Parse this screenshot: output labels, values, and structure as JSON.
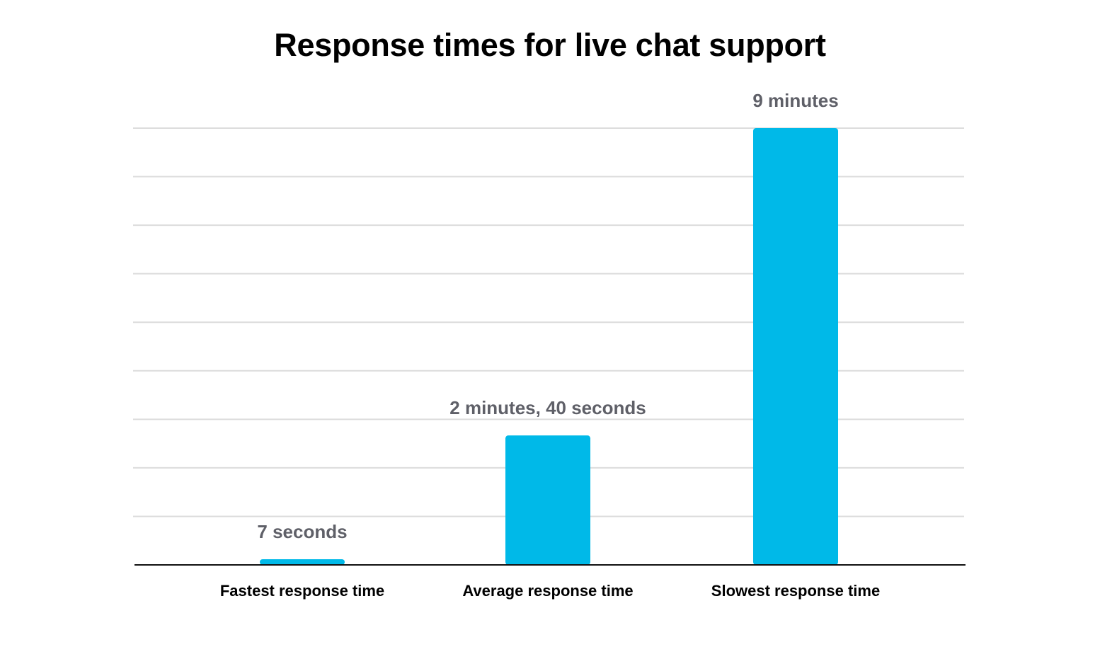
{
  "chart_data": {
    "type": "bar",
    "title": "Response times for live chat support",
    "xlabel": "",
    "ylabel": "",
    "categories": [
      "Fastest response time",
      "Average response time",
      "Slowest response time"
    ],
    "values": [
      7,
      160,
      540
    ],
    "value_unit": "seconds",
    "data_labels": [
      "7 seconds",
      "2 minutes, 40 seconds",
      "9 minutes"
    ],
    "ylim": [
      0,
      540
    ],
    "grid": true,
    "legend": "none",
    "bar_color": "#00b9e8",
    "label_color": "#5f6068"
  }
}
